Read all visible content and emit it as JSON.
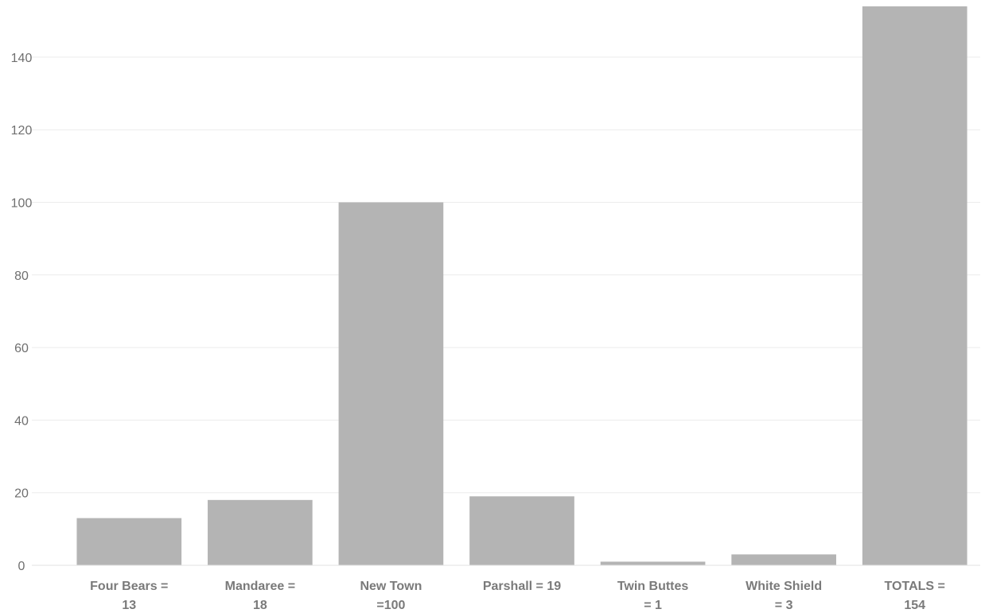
{
  "chart_data": {
    "type": "bar",
    "title": "",
    "xlabel": "",
    "ylabel": "",
    "categories": [
      [
        "Four Bears =",
        "13"
      ],
      [
        "Mandaree =",
        "18"
      ],
      [
        "New Town",
        "=100"
      ],
      [
        "Parshall = 19"
      ],
      [
        "Twin Buttes",
        "= 1"
      ],
      [
        "White Shield",
        "= 3"
      ],
      [
        "TOTALS =",
        "154"
      ]
    ],
    "values": [
      13,
      18,
      100,
      19,
      1,
      3,
      154
    ],
    "ylim": [
      0,
      154
    ],
    "yticks": [
      0,
      20,
      40,
      60,
      80,
      100,
      120,
      140
    ],
    "grid": true,
    "legend": "none",
    "bar_color": "#b4b4b4"
  }
}
